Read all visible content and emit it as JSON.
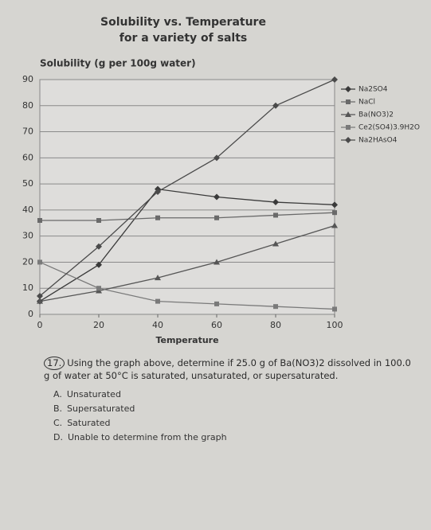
{
  "chart_data": {
    "type": "line",
    "title": [
      "Solubility vs. Temperature",
      "for a variety of salts"
    ],
    "y_label": "Solubility (g per 100g water)",
    "x_label": "Temperature",
    "x": [
      0,
      20,
      40,
      60,
      80,
      100
    ],
    "xlim": [
      0,
      100
    ],
    "xticks": [
      0,
      20,
      40,
      60,
      80,
      100
    ],
    "ylim": [
      0,
      90
    ],
    "yticks": [
      0,
      10,
      20,
      30,
      40,
      50,
      60,
      70,
      80,
      90
    ],
    "grid": true,
    "series": [
      {
        "name": "Na2SO4",
        "color": "#3a3a3a",
        "marker": "diamond",
        "values": [
          5,
          19,
          48,
          45,
          43,
          42
        ]
      },
      {
        "name": "NaCl",
        "color": "#6a6a6a",
        "marker": "square",
        "values": [
          36,
          36,
          37,
          37,
          38,
          39
        ]
      },
      {
        "name": "Ba(NO3)2",
        "color": "#555555",
        "marker": "triangle",
        "values": [
          5,
          9,
          14,
          20,
          27,
          34
        ]
      },
      {
        "name": "Ce2(SO4)3.9H2O",
        "color": "#7a7a7a",
        "marker": "square",
        "values": [
          20,
          10,
          5,
          4,
          3,
          2
        ]
      },
      {
        "name": "Na2HAsO4",
        "color": "#4a4a4a",
        "marker": "diamond",
        "values": [
          7,
          26,
          47,
          60,
          80,
          90
        ]
      }
    ]
  },
  "question": {
    "number": "17.",
    "text": "Using the graph above, determine if 25.0 g of Ba(NO3)2 dissolved in 100.0 g of water at 50°C is saturated, unsaturated, or supersaturated.",
    "options": [
      {
        "letter": "A.",
        "text": "Unsaturated"
      },
      {
        "letter": "B.",
        "text": "Supersaturated"
      },
      {
        "letter": "C.",
        "text": "Saturated"
      },
      {
        "letter": "D.",
        "text": "Unable to determine from the graph"
      }
    ]
  }
}
